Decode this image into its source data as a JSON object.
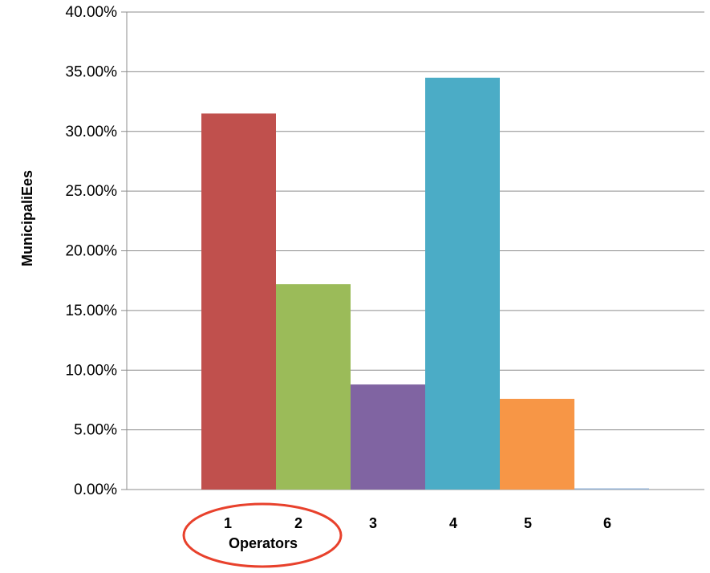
{
  "chart_data": {
    "type": "bar",
    "categories": [
      "1",
      "2",
      "3",
      "4",
      "5",
      "6"
    ],
    "values": [
      31.5,
      17.2,
      8.8,
      34.5,
      7.6,
      0.1
    ],
    "colors": [
      "#c0504d",
      "#9bbb59",
      "#8064a2",
      "#4bacc6",
      "#f79646",
      "#95b3d7"
    ],
    "ylabel": "MunicipaliEes",
    "xlabel": "Operators",
    "ylim": [
      0,
      40
    ],
    "yticks": [
      "0.00%",
      "5.00%",
      "10.00%",
      "15.00%",
      "20.00%",
      "25.00%",
      "30.00%",
      "35.00%",
      "40.00%"
    ],
    "grid": true,
    "annotation": {
      "type": "ellipse",
      "color": "#e8412c",
      "encloses": [
        "1",
        "2",
        "Operators"
      ]
    }
  }
}
